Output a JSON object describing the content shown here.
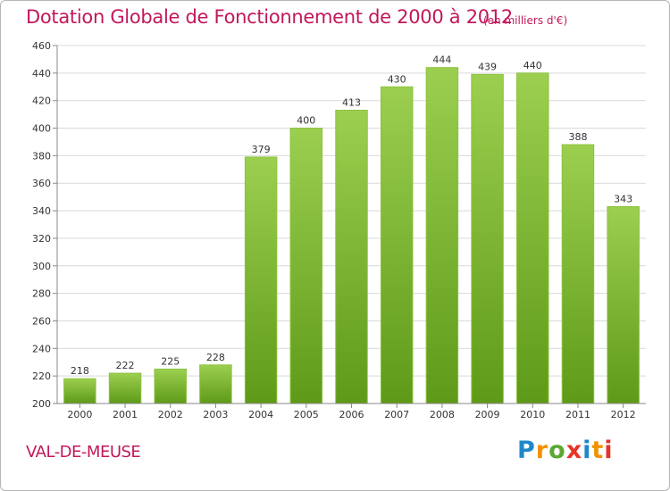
{
  "title": "Dotation Globale de Fonctionnement de 2000 à 2012",
  "unit_note": "(en milliers d'€)",
  "commune": "VAL-DE-MEUSE",
  "logo": {
    "letters": [
      "P",
      "r",
      "o",
      "x",
      "i",
      "t",
      "i"
    ],
    "colors": [
      "#1e88c9",
      "#f39200",
      "#5aa832",
      "#e6332a",
      "#1e88c9",
      "#f39200",
      "#e6332a"
    ]
  },
  "chart_data": {
    "type": "bar",
    "categories": [
      "2000",
      "2001",
      "2002",
      "2003",
      "2004",
      "2005",
      "2006",
      "2007",
      "2008",
      "2009",
      "2010",
      "2011",
      "2012"
    ],
    "values": [
      218,
      222,
      225,
      228,
      379,
      400,
      413,
      430,
      444,
      439,
      440,
      388,
      343
    ],
    "ylim": [
      200,
      460
    ],
    "yticks": [
      200,
      220,
      240,
      260,
      280,
      300,
      320,
      340,
      360,
      380,
      400,
      420,
      440,
      460
    ],
    "grid": true,
    "colors": {
      "bar_top": "#9ccf4f",
      "bar_bottom": "#5e9a18",
      "grid": "#d9d9d9",
      "axis": "#888888"
    }
  }
}
